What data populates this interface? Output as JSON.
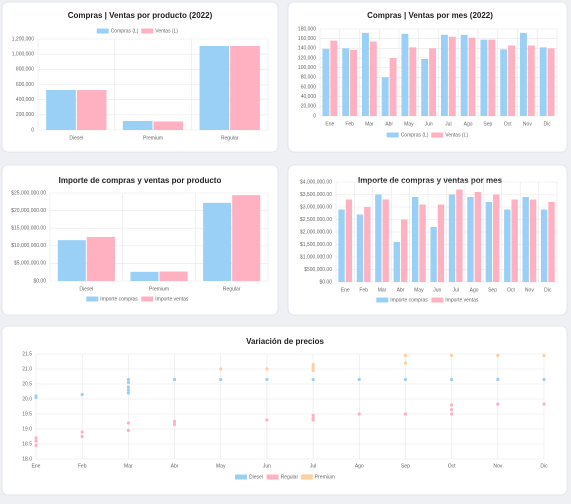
{
  "chart_data": [
    {
      "type": "bar",
      "title": "Compras | Ventas por producto (2022)",
      "legend": "top",
      "grid": true,
      "categories": [
        "Diesel",
        "Premium",
        "Regular"
      ],
      "series": [
        {
          "name": "Compras (L)",
          "color": "#9ad0f5",
          "values": [
            527000,
            119000,
            1108000
          ]
        },
        {
          "name": "Ventas (L)",
          "color": "#ffb1c1",
          "values": [
            527000,
            112000,
            1108000
          ]
        }
      ],
      "ylim": [
        0,
        1200000
      ],
      "yticks": [
        0,
        {
          "value": 200000,
          "label": "200,000"
        },
        {
          "value": 400000,
          "label": "400,000"
        },
        {
          "value": 600000,
          "label": "600,000"
        },
        {
          "value": 800000,
          "label": "800,000"
        },
        {
          "value": 1000000,
          "label": "1,000,000"
        },
        {
          "value": 1200000,
          "label": "1,200,000"
        }
      ]
    },
    {
      "type": "bar",
      "title": "Compras | Ventas por mes (2022)",
      "legend": "bottom",
      "grid": true,
      "categories": [
        "Ene",
        "Feb",
        "Mar",
        "Abr",
        "May",
        "Jun",
        "Jul",
        "Ago",
        "Sep",
        "Oct",
        "Nov",
        "Dic"
      ],
      "series": [
        {
          "name": "Compras (L)",
          "color": "#9ad0f5",
          "values": [
            139000,
            140000,
            172000,
            80000,
            170000,
            118000,
            168000,
            168000,
            158000,
            138000,
            172000,
            142000
          ]
        },
        {
          "name": "Ventas (L)",
          "color": "#ffb1c1",
          "values": [
            156000,
            137000,
            154000,
            120000,
            142000,
            140000,
            164000,
            162000,
            158000,
            146000,
            146000,
            140000
          ]
        }
      ],
      "ylim": [
        0,
        180000
      ],
      "yticks": [
        0,
        {
          "value": 20000,
          "label": "20,000"
        },
        {
          "value": 40000,
          "label": "40,000"
        },
        {
          "value": 60000,
          "label": "60,000"
        },
        {
          "value": 80000,
          "label": "80,000"
        },
        {
          "value": 100000,
          "label": "100,000"
        },
        {
          "value": 120000,
          "label": "120,000"
        },
        {
          "value": 140000,
          "label": "140,000"
        },
        {
          "value": 160000,
          "label": "160,000"
        },
        {
          "value": 180000,
          "label": "180,000"
        }
      ]
    },
    {
      "type": "bar",
      "title": "Importe de compras y ventas por producto",
      "legend": "bottom",
      "grid": true,
      "categories": [
        "Diesel",
        "Premium",
        "Regular"
      ],
      "series": [
        {
          "name": "Importe compras",
          "color": "#9ad0f5",
          "values": [
            11600000,
            2600000,
            22200000
          ]
        },
        {
          "name": "Importe ventas",
          "color": "#ffb1c1",
          "values": [
            12500000,
            2700000,
            24400000
          ]
        }
      ],
      "ylim": [
        0,
        25000000
      ],
      "yticks": [
        {
          "value": 0,
          "label": "$0.00"
        },
        {
          "value": 5000000,
          "label": "$5,000,000.00"
        },
        {
          "value": 10000000,
          "label": "$10,000,000.00"
        },
        {
          "value": 15000000,
          "label": "$15,000,000.00"
        },
        {
          "value": 20000000,
          "label": "$20,000,000.00"
        },
        {
          "value": 25000000,
          "label": "$25,000,000.00"
        }
      ]
    },
    {
      "type": "bar",
      "title": "Importe de compras y ventas por mes",
      "legend": "bottom",
      "grid": true,
      "categories": [
        "Ene",
        "Feb",
        "Mar",
        "Abr",
        "May",
        "Jun",
        "Jul",
        "Ago",
        "Sep",
        "Oct",
        "Nov",
        "Dic"
      ],
      "series": [
        {
          "name": "Importe compras",
          "color": "#9ad0f5",
          "values": [
            2900000,
            2700000,
            3500000,
            1600000,
            3400000,
            2200000,
            3500000,
            3400000,
            3200000,
            2900000,
            3400000,
            2900000
          ]
        },
        {
          "name": "Importe ventas",
          "color": "#ffb1c1",
          "values": [
            3300000,
            3000000,
            3300000,
            2500000,
            3100000,
            3100000,
            3700000,
            3600000,
            3500000,
            3300000,
            3300000,
            3200000
          ]
        }
      ],
      "ylim": [
        0,
        4000000
      ],
      "yticks": [
        {
          "value": 0,
          "label": "$0.00"
        },
        {
          "value": 500000,
          "label": "$500,000.00"
        },
        {
          "value": 1000000,
          "label": "$1,000,000.00"
        },
        {
          "value": 1500000,
          "label": "$1,500,000.00"
        },
        {
          "value": 2000000,
          "label": "$2,000,000.00"
        },
        {
          "value": 2500000,
          "label": "$2,500,000.00"
        },
        {
          "value": 3000000,
          "label": "$3,000,000.00"
        },
        {
          "value": 3500000,
          "label": "$3,500,000.00"
        },
        {
          "value": 4000000,
          "label": "$4,000,000.00"
        }
      ]
    },
    {
      "type": "scatter",
      "title": "Variación de precios",
      "legend": "bottom",
      "grid": true,
      "categories": [
        "Ene",
        "Feb",
        "Mar",
        "Abr",
        "May",
        "Jun",
        "Jul",
        "Ago",
        "Sep",
        "Oct",
        "Nov",
        "Dic"
      ],
      "series": [
        {
          "name": "Diesel",
          "color": "#9ad0f5",
          "x": [
            "Ene",
            "Ene",
            "Feb",
            "Mar",
            "Mar",
            "Mar",
            "Mar",
            "Mar",
            "Abr",
            "May",
            "Jun",
            "Jul",
            "Ago",
            "Sep",
            "Oct",
            "Nov",
            "Dic"
          ],
          "values": [
            20.1,
            20.05,
            20.15,
            20.65,
            20.55,
            20.4,
            20.3,
            20.2,
            20.65,
            20.65,
            20.65,
            20.65,
            20.65,
            20.65,
            20.65,
            20.65,
            20.65
          ]
        },
        {
          "name": "Regular",
          "color": "#ffb1c1",
          "x": [
            "Ene",
            "Ene",
            "Ene",
            "Feb",
            "Feb",
            "Mar",
            "Mar",
            "Abr",
            "Abr",
            "Jun",
            "Jul",
            "Jul",
            "Jul",
            "Ago",
            "Sep",
            "Oct",
            "Oct",
            "Oct",
            "Nov",
            "Dic"
          ],
          "values": [
            18.7,
            18.6,
            18.45,
            18.9,
            18.75,
            19.2,
            18.95,
            19.25,
            19.15,
            19.3,
            19.45,
            19.35,
            19.3,
            19.5,
            19.5,
            19.8,
            19.65,
            19.5,
            19.83,
            19.83
          ]
        },
        {
          "name": "Premium",
          "color": "#ffcf9f",
          "x": [
            "May",
            "Jun",
            "Jul",
            "Jul",
            "Jul",
            "Sep",
            "Sep",
            "Oct",
            "Nov",
            "Dic"
          ],
          "values": [
            21.0,
            21.0,
            21.15,
            21.05,
            20.95,
            21.45,
            21.2,
            21.45,
            21.45,
            21.45
          ]
        }
      ],
      "ylim": [
        18,
        21.5
      ],
      "yticks": [
        {
          "value": 18,
          "label": "18.0"
        },
        18.5,
        {
          "value": 19,
          "label": "19.0"
        },
        19.5,
        {
          "value": 20,
          "label": "20.0"
        },
        20.5,
        {
          "value": 21,
          "label": "21.0"
        },
        21.5
      ]
    }
  ]
}
